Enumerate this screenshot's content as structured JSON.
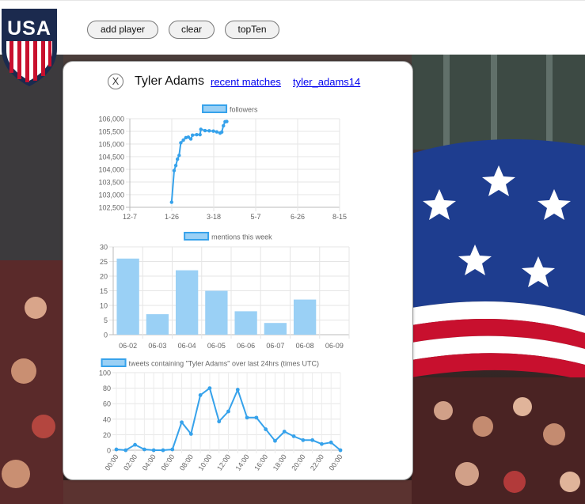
{
  "toolbar": {
    "add_label": "add player",
    "clear_label": "clear",
    "top_label": "topTen"
  },
  "logo": {
    "text": "USA"
  },
  "colors": {
    "series_line": "#36a2eb",
    "series_fill": "#9ad0f5",
    "link": "#0000ee"
  },
  "popup": {
    "close_label": "X",
    "player_name": "Tyler Adams",
    "recent_link": "recent matches",
    "handle_link": "tyler_adams14"
  },
  "chart_data": [
    {
      "type": "line",
      "title": "",
      "legend": "followers",
      "x_ticks": [
        "12-7",
        "1-26",
        "3-18",
        "5-7",
        "6-26",
        "8-15"
      ],
      "x_domain": [
        "12-7",
        "8-15"
      ],
      "y_ticks": [
        "102,500",
        "103,000",
        "103,500",
        "104,000",
        "104,500",
        "105,000",
        "105,500",
        "106,000"
      ],
      "ylim": [
        102500,
        106000
      ],
      "points": [
        {
          "day": 50,
          "v": 102700
        },
        {
          "day": 53,
          "v": 103950
        },
        {
          "day": 55,
          "v": 104150
        },
        {
          "day": 57,
          "v": 104400
        },
        {
          "day": 59,
          "v": 104550
        },
        {
          "day": 61,
          "v": 105050
        },
        {
          "day": 64,
          "v": 105150
        },
        {
          "day": 67,
          "v": 105250
        },
        {
          "day": 70,
          "v": 105270
        },
        {
          "day": 73,
          "v": 105200
        },
        {
          "day": 75,
          "v": 105350
        },
        {
          "day": 80,
          "v": 105370
        },
        {
          "day": 84,
          "v": 105370
        },
        {
          "day": 85,
          "v": 105580
        },
        {
          "day": 90,
          "v": 105530
        },
        {
          "day": 95,
          "v": 105520
        },
        {
          "day": 100,
          "v": 105510
        },
        {
          "day": 104,
          "v": 105480
        },
        {
          "day": 108,
          "v": 105430
        },
        {
          "day": 110,
          "v": 105470
        },
        {
          "day": 112,
          "v": 105720
        },
        {
          "day": 114,
          "v": 105880
        },
        {
          "day": 116,
          "v": 105890
        }
      ]
    },
    {
      "type": "bar",
      "title": "",
      "legend": "mentions this week",
      "categories": [
        "06-02",
        "06-03",
        "06-04",
        "06-05",
        "06-06",
        "06-07",
        "06-08",
        "06-09"
      ],
      "values": [
        26,
        7,
        22,
        15,
        8,
        4,
        12,
        0
      ],
      "y_ticks": [
        "0",
        "5",
        "10",
        "15",
        "20",
        "25",
        "30"
      ],
      "ylim": [
        0,
        30
      ]
    },
    {
      "type": "line",
      "title": "",
      "legend": "tweets containing \"Tyler Adams\" over last 24hrs (times UTC)",
      "x_ticks": [
        "00:00",
        "02:00",
        "04:00",
        "06:00",
        "08:00",
        "10:00",
        "12:00",
        "14:00",
        "16:00",
        "18:00",
        "20:00",
        "22:00",
        "00:00"
      ],
      "values": [
        1,
        0,
        7,
        1,
        0,
        0,
        1,
        36,
        21,
        71,
        80,
        37,
        50,
        78,
        42,
        42,
        27,
        12,
        24,
        18,
        13,
        13,
        8,
        10,
        0
      ],
      "y_ticks": [
        "0",
        "20",
        "40",
        "60",
        "80",
        "100"
      ],
      "ylim": [
        0,
        100
      ]
    }
  ]
}
